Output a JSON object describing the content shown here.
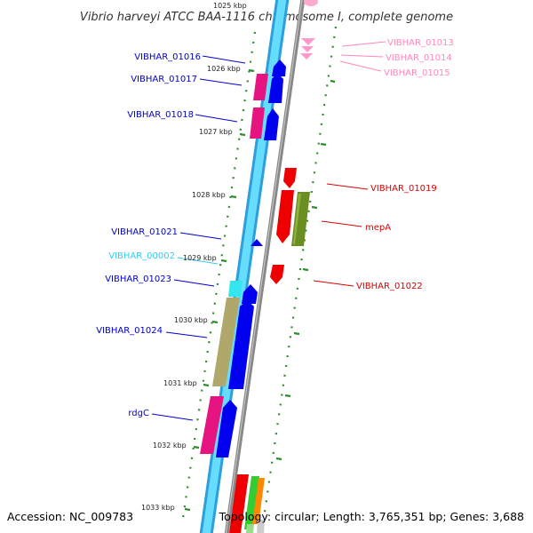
{
  "title": "Vibrio harveyi ATCC BAA-1116 chromosome I, complete genome",
  "accession": "Accession: NC_009783",
  "topology": "Topology: circular; Length: 3,765,351 bp; Genes: 3,688",
  "colors": {
    "background": "#ffffff",
    "title_text": "#333333",
    "footer_text": "#000000",
    "backbone_outer": "#2d9fdd",
    "backbone_inner": "#66ddff",
    "chromosome_line": "#888888",
    "tick_marks": "#2e8b2e",
    "kbp_labels": "#222222",
    "gene_forward": "#0000ee",
    "gene_reverse": "#ee0000",
    "rna_gene": "#33e5ee",
    "trna_pink": "#ff99cc",
    "magenta_feature": "#e51480",
    "khaki_feature": "#b0a86a",
    "olive_feature": "#6b8e23"
  },
  "kbp_ticks": [
    "1025 kbp",
    "1026 kbp",
    "1027 kbp",
    "1028 kbp",
    "1029 kbp",
    "1030 kbp",
    "1031 kbp",
    "1032 kbp",
    "1033 kbp"
  ],
  "gene_labels": [
    {
      "text": "VIBHAR_01013",
      "color": "#ff88bb"
    },
    {
      "text": "VIBHAR_01014",
      "color": "#ff88bb"
    },
    {
      "text": "VIBHAR_01015",
      "color": "#ff88bb"
    },
    {
      "text": "VIBHAR_01016",
      "color": "#0000cc"
    },
    {
      "text": "VIBHAR_01017",
      "color": "#0000cc"
    },
    {
      "text": "VIBHAR_01018",
      "color": "#0000cc"
    },
    {
      "text": "VIBHAR_01019",
      "color": "#dd0000"
    },
    {
      "text": "mepA",
      "color": "#dd0000"
    },
    {
      "text": "VIBHAR_01021",
      "color": "#0000cc"
    },
    {
      "text": "VIBHAR_00002",
      "color": "#33ccee"
    },
    {
      "text": "VIBHAR_01022",
      "color": "#dd0000"
    },
    {
      "text": "VIBHAR_01023",
      "color": "#0000cc"
    },
    {
      "text": "VIBHAR_01024",
      "color": "#0000cc"
    },
    {
      "text": "rdgC",
      "color": "#0000cc"
    }
  ]
}
